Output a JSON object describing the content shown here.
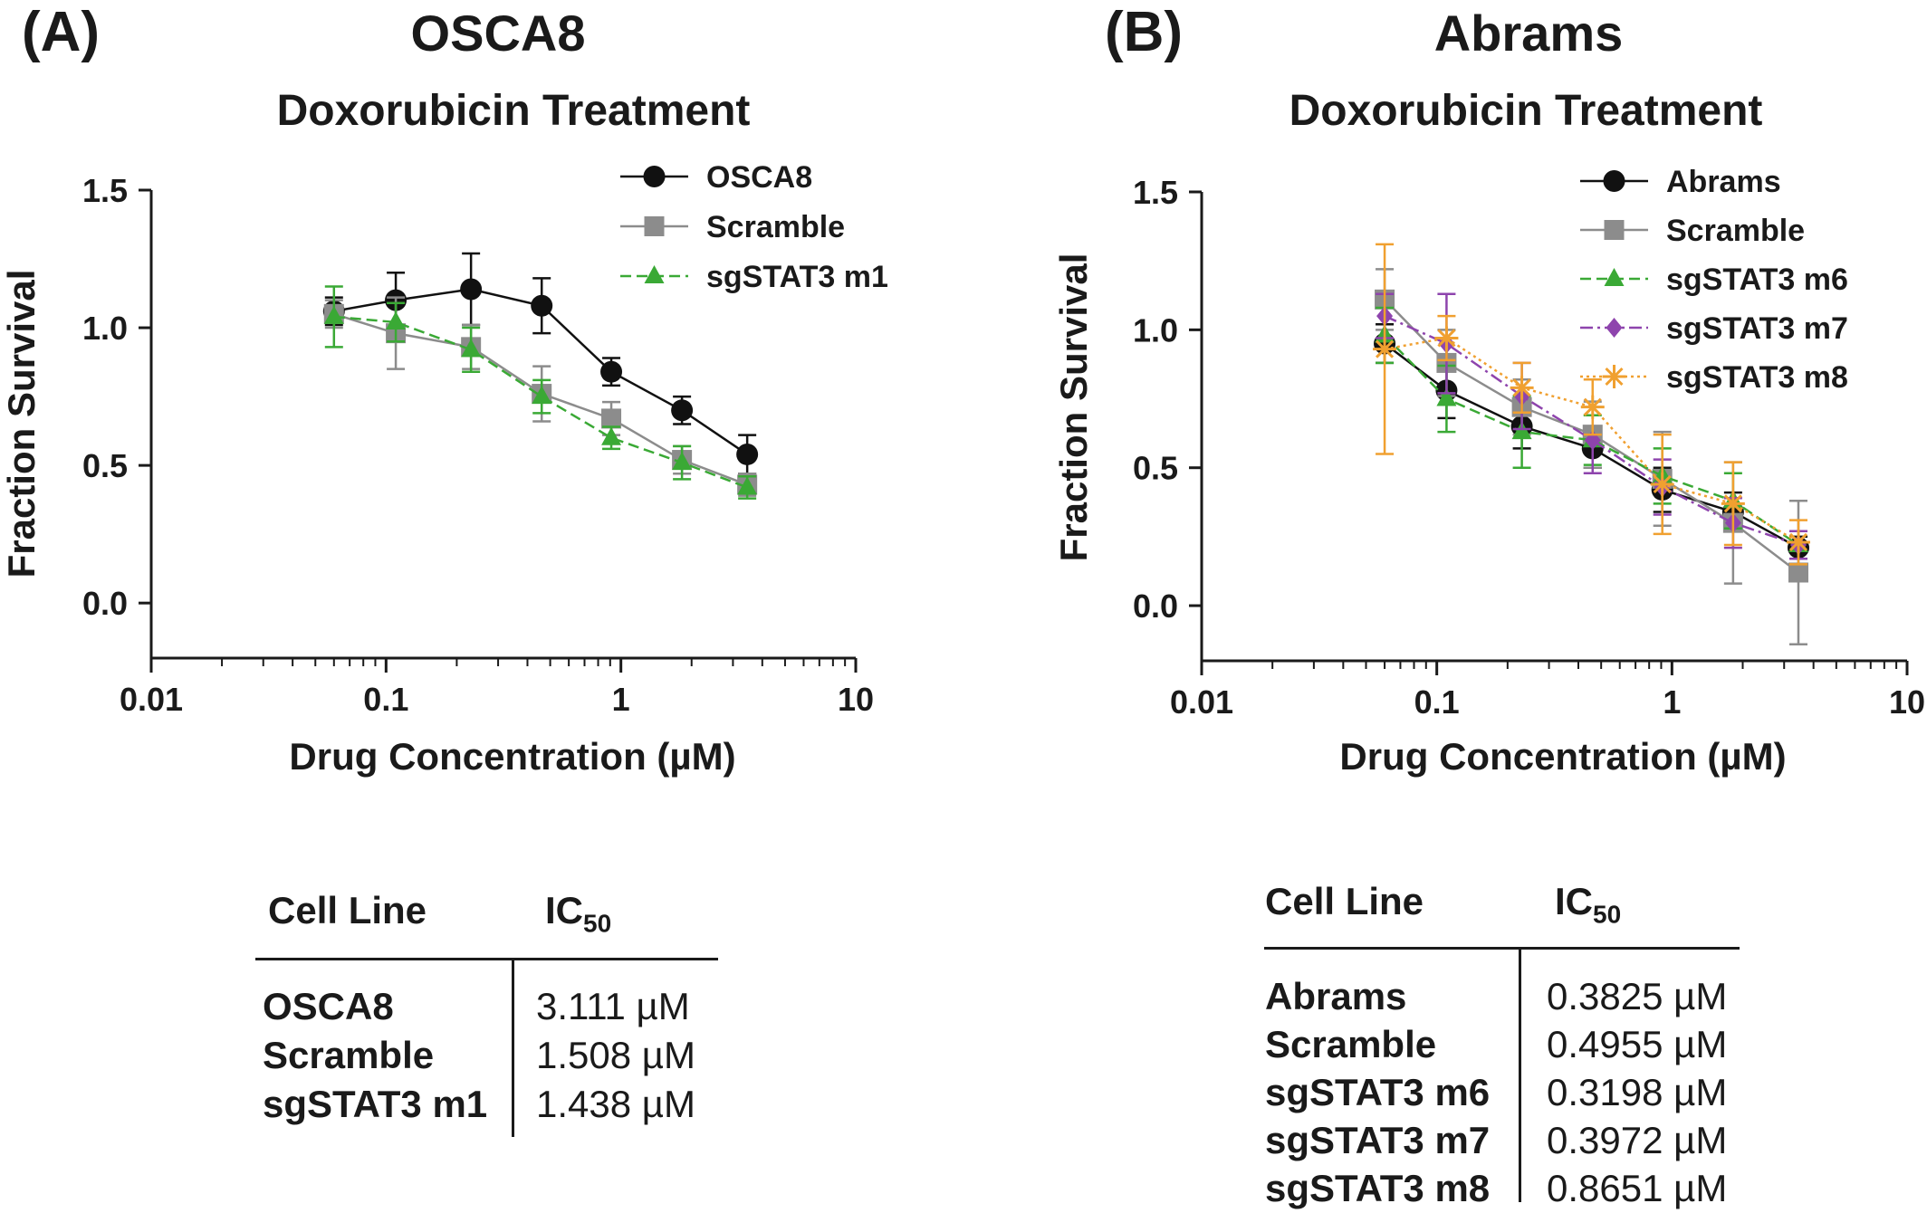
{
  "panels": [
    {
      "label": "(A)",
      "title": "OSCA8",
      "subtitle": "Doxorubicin Treatment",
      "table": {
        "headers": [
          "Cell Line",
          "IC",
          "50"
        ],
        "rows": [
          {
            "name": "OSCA8",
            "value": "3.111 µM"
          },
          {
            "name": "Scramble",
            "value": "1.508 µM"
          },
          {
            "name": "sgSTAT3 m1",
            "value": "1.438 µM"
          }
        ]
      }
    },
    {
      "label": "(B)",
      "title": "Abrams",
      "subtitle": "Doxorubicin Treatment",
      "table": {
        "headers": [
          "Cell Line",
          "IC",
          "50"
        ],
        "rows": [
          {
            "name": "Abrams",
            "value": "0.3825 µM"
          },
          {
            "name": "Scramble",
            "value": "0.4955 µM"
          },
          {
            "name": "sgSTAT3 m6",
            "value": "0.3198 µM"
          },
          {
            "name": "sgSTAT3 m7",
            "value": "0.3972 µM"
          },
          {
            "name": "sgSTAT3 m8",
            "value": "0.8651 µM"
          }
        ]
      }
    }
  ],
  "chart_data": [
    {
      "type": "line",
      "title": "OSCA8",
      "subtitle": "Doxorubicin Treatment",
      "xlabel": "Drug Concentration (µM)",
      "ylabel": "Fraction Survival",
      "xscale": "log",
      "xlim": [
        0.01,
        10
      ],
      "ylim": [
        -0.2,
        1.5
      ],
      "xticks": [
        0.01,
        0.1,
        1,
        10
      ],
      "xtick_labels": [
        "0.01",
        "0.1",
        "1",
        "10"
      ],
      "yticks": [
        0.0,
        0.5,
        1.0,
        1.5
      ],
      "ytick_labels": [
        "0.0",
        "0.5",
        "1.0",
        "1.5"
      ],
      "legend_position": "top-right",
      "x": [
        0.06,
        0.11,
        0.23,
        0.46,
        0.91,
        1.82,
        3.45
      ],
      "series": [
        {
          "name": "OSCA8",
          "color": "#111111",
          "marker": "circle",
          "dash": "solid",
          "values": [
            1.06,
            1.1,
            1.14,
            1.08,
            0.84,
            0.7,
            0.54
          ],
          "errors": [
            0.05,
            0.1,
            0.13,
            0.1,
            0.05,
            0.05,
            0.07
          ]
        },
        {
          "name": "Scramble",
          "color": "#8c8c8c",
          "marker": "square",
          "dash": "solid",
          "values": [
            1.05,
            0.98,
            0.93,
            0.76,
            0.67,
            0.52,
            0.43
          ],
          "errors": [
            0.05,
            0.13,
            0.08,
            0.1,
            0.06,
            0.05,
            0.04
          ]
        },
        {
          "name": "sgSTAT3 m1",
          "color": "#3aa935",
          "marker": "triangle",
          "dash": "dashed",
          "values": [
            1.04,
            1.02,
            0.92,
            0.75,
            0.6,
            0.51,
            0.42
          ],
          "errors": [
            0.11,
            0.07,
            0.08,
            0.06,
            0.04,
            0.06,
            0.04
          ]
        }
      ]
    },
    {
      "type": "line",
      "title": "Abrams",
      "subtitle": "Doxorubicin Treatment",
      "xlabel": "Drug Concentration (µM)",
      "ylabel": "Fraction Survival",
      "xscale": "log",
      "xlim": [
        0.01,
        10
      ],
      "ylim": [
        -0.2,
        1.5
      ],
      "xticks": [
        0.01,
        0.1,
        1,
        10
      ],
      "xtick_labels": [
        "0.01",
        "0.1",
        "1",
        "10"
      ],
      "yticks": [
        0.0,
        0.5,
        1.0,
        1.5
      ],
      "ytick_labels": [
        "0.0",
        "0.5",
        "1.0",
        "1.5"
      ],
      "legend_position": "top-right",
      "x": [
        0.06,
        0.11,
        0.23,
        0.46,
        0.91,
        1.82,
        3.45
      ],
      "series": [
        {
          "name": "Abrams",
          "color": "#111111",
          "marker": "circle",
          "dash": "solid",
          "values": [
            0.95,
            0.78,
            0.65,
            0.57,
            0.42,
            0.34,
            0.21
          ],
          "errors": [
            0.07,
            0.1,
            0.08,
            0.07,
            0.08,
            0.07,
            0.04
          ]
        },
        {
          "name": "Scramble",
          "color": "#8c8c8c",
          "marker": "square",
          "dash": "solid",
          "values": [
            1.11,
            0.88,
            0.72,
            0.62,
            0.46,
            0.3,
            0.12
          ],
          "errors": [
            0.11,
            0.12,
            0.1,
            0.12,
            0.17,
            0.22,
            0.26
          ]
        },
        {
          "name": "sgSTAT3 m6",
          "color": "#3aa935",
          "marker": "triangle",
          "dash": "dashed",
          "values": [
            0.98,
            0.75,
            0.63,
            0.6,
            0.47,
            0.38,
            0.22
          ],
          "errors": [
            0.1,
            0.12,
            0.13,
            0.09,
            0.1,
            0.1,
            0.05
          ]
        },
        {
          "name": "sgSTAT3 m7",
          "color": "#8e44ad",
          "marker": "diamond",
          "dash": "dashdot",
          "values": [
            1.05,
            0.95,
            0.76,
            0.6,
            0.43,
            0.3,
            0.22
          ],
          "errors": [
            0.08,
            0.18,
            0.12,
            0.12,
            0.1,
            0.09,
            0.05
          ]
        },
        {
          "name": "sgSTAT3 m8",
          "color": "#f0a030",
          "marker": "star",
          "dash": "dotted",
          "values": [
            0.93,
            0.97,
            0.79,
            0.72,
            0.44,
            0.37,
            0.23
          ],
          "errors": [
            0.38,
            0.08,
            0.09,
            0.1,
            0.18,
            0.15,
            0.08
          ]
        }
      ]
    }
  ]
}
